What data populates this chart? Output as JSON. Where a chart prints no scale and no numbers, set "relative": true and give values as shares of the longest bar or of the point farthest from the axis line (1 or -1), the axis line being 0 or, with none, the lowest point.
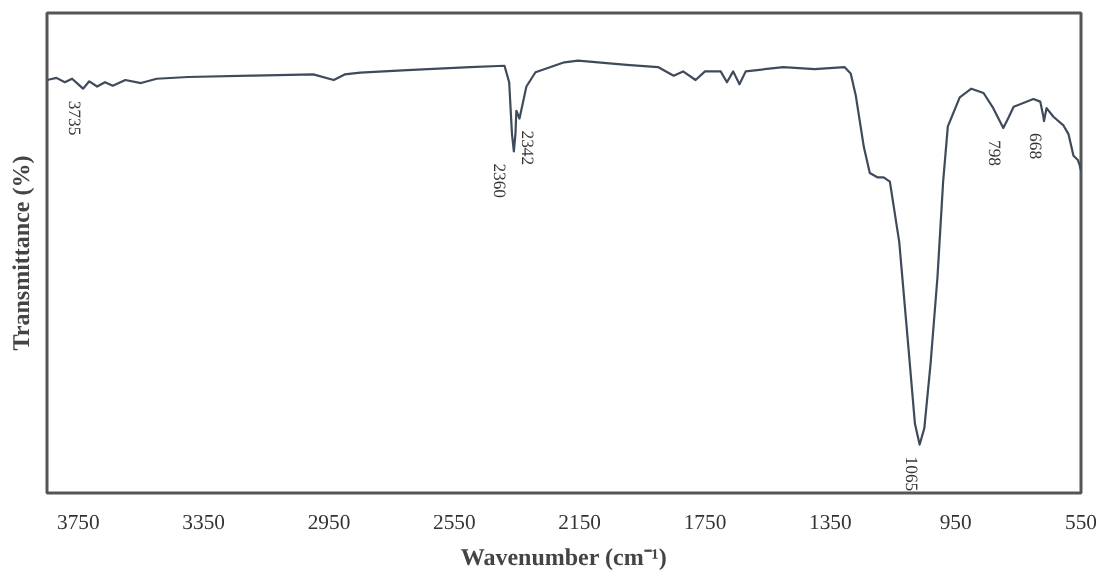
{
  "chart_data": {
    "type": "line",
    "relative": true,
    "xlabel": "Wavenumber (cm⁻¹)",
    "ylabel": "Transmittance (%)",
    "xlim": [
      3850,
      550
    ],
    "xticks": [
      3750,
      3350,
      2950,
      2550,
      2150,
      1750,
      1350,
      950,
      550
    ],
    "x": [
      3850,
      3820,
      3793,
      3770,
      3750,
      3735,
      3715,
      3690,
      3665,
      3640,
      3600,
      3550,
      3500,
      3400,
      3200,
      3000,
      2935,
      2900,
      2850,
      2700,
      2500,
      2390,
      2375,
      2366,
      2360,
      2355,
      2352,
      2342,
      2320,
      2291,
      2199,
      2155,
      2000,
      1900,
      1850,
      1820,
      1780,
      1750,
      1700,
      1680,
      1660,
      1640,
      1620,
      1560,
      1500,
      1400,
      1305,
      1285,
      1269,
      1243,
      1224,
      1200,
      1180,
      1160,
      1130,
      1100,
      1080,
      1065,
      1050,
      1030,
      1008,
      990,
      975,
      937,
      900,
      861,
      830,
      798,
      780,
      765,
      702,
      680,
      670,
      668,
      660,
      638,
      606,
      590,
      574,
      560,
      555,
      550
    ],
    "series": [
      {
        "color": "#3f4a5c",
        "values": [
          0.955,
          0.96,
          0.95,
          0.958,
          0.945,
          0.935,
          0.952,
          0.94,
          0.95,
          0.942,
          0.955,
          0.948,
          0.958,
          0.962,
          0.965,
          0.968,
          0.955,
          0.968,
          0.972,
          0.978,
          0.985,
          0.988,
          0.95,
          0.83,
          0.79,
          0.83,
          0.884,
          0.866,
          0.94,
          0.973,
          0.996,
          1.0,
          0.99,
          0.985,
          0.965,
          0.975,
          0.955,
          0.975,
          0.975,
          0.95,
          0.975,
          0.945,
          0.975,
          0.98,
          0.985,
          0.98,
          0.985,
          0.97,
          0.92,
          0.8,
          0.74,
          0.73,
          0.73,
          0.72,
          0.58,
          0.33,
          0.16,
          0.112,
          0.15,
          0.3,
          0.5,
          0.72,
          0.848,
          0.915,
          0.935,
          0.925,
          0.89,
          0.844,
          0.87,
          0.893,
          0.911,
          0.905,
          0.87,
          0.86,
          0.89,
          0.87,
          0.85,
          0.83,
          0.78,
          0.77,
          0.76,
          0.746
        ]
      }
    ],
    "annotations": [
      {
        "text": "3735",
        "x": 3735,
        "y": 0.935
      },
      {
        "text": "2360",
        "x": 2360,
        "y": 0.79
      },
      {
        "text": "2342",
        "x": 2342,
        "y": 0.866
      },
      {
        "text": "1065",
        "x": 1065,
        "y": 0.112
      },
      {
        "text": "798",
        "x": 798,
        "y": 0.844
      },
      {
        "text": "668",
        "x": 668,
        "y": 0.86
      }
    ],
    "grid": false,
    "line_style": "solid",
    "marker": "none"
  }
}
